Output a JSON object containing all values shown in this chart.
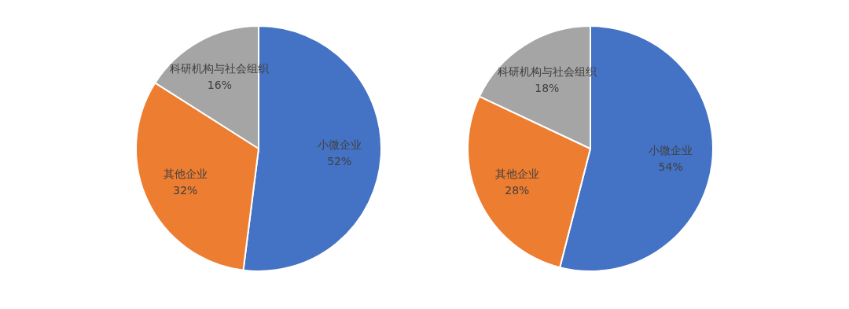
{
  "chart_data": [
    {
      "type": "pie",
      "categories": [
        "小微企业",
        "其他企业",
        "科研机构与社会组织"
      ],
      "values": [
        52,
        32,
        16
      ],
      "colors": [
        "#4472c4",
        "#ed7d31",
        "#a5a5a5"
      ],
      "value_labels": [
        "52%",
        "32%",
        "16%"
      ]
    },
    {
      "type": "pie",
      "categories": [
        "小微企业",
        "其他企业",
        "科研机构与社会组织"
      ],
      "values": [
        54,
        28,
        18
      ],
      "colors": [
        "#4472c4",
        "#ed7d31",
        "#a5a5a5"
      ],
      "value_labels": [
        "54%",
        "28%",
        "18%"
      ]
    }
  ]
}
